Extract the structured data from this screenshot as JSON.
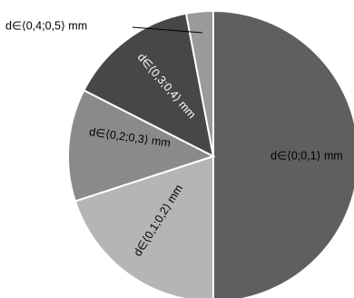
{
  "chart_data": {
    "type": "pie",
    "title": "",
    "start_angle_deg": 0,
    "direction": "clockwise",
    "legend": "none",
    "slices": [
      {
        "label": "d∈⟨0;0,1⟩ mm",
        "value": 50.0,
        "color": "#5f5f5f"
      },
      {
        "label": "d∈⟨0,1;0,2⟩ mm",
        "value": 20.0,
        "color": "#b5b5b5"
      },
      {
        "label": "d∈⟨0,2;0,3⟩ mm",
        "value": 12.5,
        "color": "#8a8a8a"
      },
      {
        "label": "d∈⟨0,3;0,4⟩ mm",
        "value": 14.5,
        "color": "#474747"
      },
      {
        "label": "d∈⟨0,4;0,5⟩ mm",
        "value": 3.0,
        "color": "#9a9a9a"
      }
    ]
  }
}
